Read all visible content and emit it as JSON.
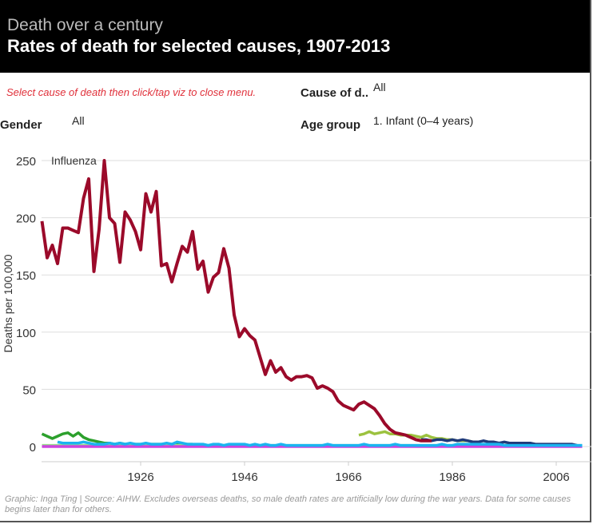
{
  "header": {
    "subtitle": "Death over a century",
    "title": "Rates of death for selected causes, 1907-2013"
  },
  "controls": {
    "hint": "Select cause of death then click/tap viz to close menu.",
    "cause_label": "Cause of d..",
    "cause_value": "All",
    "gender_label": "Gender",
    "gender_value": "All",
    "age_label": "Age group",
    "age_value": "1. Infant (0–4 years)"
  },
  "footer": "Graphic: Inga Ting | Source: AIHW. Excludes overseas deaths, so male death rates are artificially low during the war years. Data for some causes begins later than for others.",
  "chart_data": {
    "type": "line",
    "ylabel": "Deaths per 100,000",
    "ylim": [
      0,
      250
    ],
    "yticks": [
      0,
      50,
      100,
      150,
      200,
      250
    ],
    "xticks": [
      1926,
      1946,
      1966,
      1986,
      2006
    ],
    "grid": "horizontal",
    "annotation": "Influenza",
    "series": [
      {
        "name": "Influenza",
        "color": "#9b0a2a",
        "start": 1907,
        "values": [
          197,
          165,
          176,
          160,
          191,
          191,
          189,
          187,
          217,
          234,
          153,
          190,
          250,
          200,
          195,
          161,
          205,
          198,
          188,
          172,
          221,
          205,
          223,
          158,
          160,
          144,
          160,
          175,
          170,
          188,
          155,
          162,
          135,
          148,
          152,
          173,
          156,
          115,
          96,
          103,
          97,
          93,
          78,
          63,
          75,
          65,
          69,
          61,
          58,
          61,
          61,
          62,
          60,
          51,
          53,
          51,
          48,
          40,
          36,
          34,
          32,
          37,
          39,
          36,
          33,
          27,
          20,
          15,
          12,
          11,
          10,
          8,
          6,
          5,
          5,
          5
        ]
      },
      {
        "color": "#2ca02c",
        "start": 1907,
        "values": [
          11,
          9,
          7,
          9,
          11,
          12,
          9,
          12,
          8,
          6,
          5,
          4,
          3,
          3,
          2,
          3,
          2,
          2,
          2,
          2,
          2,
          2,
          2,
          2,
          2,
          2,
          2,
          2,
          2,
          2
        ]
      },
      {
        "color": "#98df8a",
        "start": 1907,
        "values": [
          1,
          1,
          1,
          1,
          1,
          1,
          1,
          1,
          1,
          1,
          1,
          1,
          1,
          1,
          1,
          1,
          1,
          1,
          1,
          1,
          1,
          1,
          1,
          1,
          1,
          1,
          1,
          1,
          1,
          1,
          1,
          1,
          1,
          1,
          1,
          1,
          1,
          1,
          1,
          1,
          1,
          1,
          1,
          1,
          1,
          1,
          1,
          1,
          1,
          1,
          1,
          1,
          1,
          1,
          1,
          1,
          1,
          1,
          1,
          1,
          1,
          1,
          1,
          1,
          1,
          1,
          1,
          1,
          1,
          1,
          1,
          1,
          1,
          1,
          1,
          1,
          1,
          1,
          1,
          1,
          1,
          1,
          1,
          1,
          1,
          1,
          1,
          1,
          1,
          1,
          1,
          1,
          1,
          1,
          1,
          1,
          1,
          1,
          1,
          1,
          1,
          1,
          1,
          1,
          1
        ]
      },
      {
        "color": "#cc44dd",
        "start": 1907,
        "values": [
          0,
          0,
          0,
          0,
          0,
          0,
          0,
          0,
          0,
          0,
          0,
          0,
          0,
          0,
          0,
          0,
          0,
          0,
          0,
          0,
          0,
          0,
          0,
          0,
          0,
          0,
          0,
          0,
          0,
          0,
          0,
          0,
          0,
          0,
          0,
          0,
          0,
          0,
          0,
          0,
          0,
          0,
          0,
          0,
          0,
          0,
          0,
          0,
          0,
          0,
          0,
          0,
          0,
          0,
          0,
          0,
          0,
          0,
          0,
          0,
          0,
          0,
          0,
          0,
          0,
          0,
          0,
          0,
          0,
          0,
          0,
          0,
          0,
          0,
          0,
          0,
          0,
          0,
          0,
          0,
          0,
          0,
          0,
          0,
          0,
          0,
          0,
          0,
          0,
          0,
          0,
          0,
          0,
          0,
          0,
          0,
          0,
          0,
          0,
          0,
          0,
          0,
          0,
          0,
          0
        ]
      },
      {
        "color": "#9cc23f",
        "start": 1968,
        "values": [
          10,
          11,
          13,
          11,
          12,
          13,
          11,
          11,
          10,
          10,
          10,
          9,
          8,
          10,
          8,
          7,
          7,
          6,
          6,
          5,
          5,
          5,
          4
        ]
      },
      {
        "color": "#1f3a7a",
        "start": 1980,
        "values": [
          6,
          6,
          5,
          6,
          6,
          5,
          6,
          5,
          6,
          5,
          4,
          4,
          5,
          4,
          4,
          3,
          4,
          3,
          3,
          3,
          3,
          3,
          2,
          2,
          2,
          2,
          2,
          2,
          2,
          2,
          1
        ]
      },
      {
        "color": "#1ab4f0",
        "start": 1910,
        "values": [
          4,
          3,
          3,
          3,
          3,
          4,
          3,
          2,
          2,
          2,
          3,
          2,
          3,
          2,
          3,
          2,
          2,
          3,
          2,
          2,
          2,
          3,
          2,
          4,
          3,
          2,
          2,
          2,
          2,
          1,
          2,
          2,
          1,
          2,
          2,
          2,
          2,
          1,
          2,
          1,
          2,
          1,
          1,
          2,
          1,
          1,
          1,
          1,
          1,
          1,
          1,
          1,
          2,
          1,
          1,
          1,
          1,
          1,
          1,
          2,
          1,
          1,
          1,
          1,
          1,
          2,
          1,
          1,
          1,
          1,
          1,
          1,
          1,
          1,
          2,
          1,
          1,
          2,
          2,
          2,
          2,
          2,
          2,
          2,
          2,
          2,
          1,
          1,
          1,
          1,
          1,
          1,
          1,
          1,
          1,
          1,
          1,
          1,
          1,
          1,
          1,
          1
        ]
      }
    ]
  }
}
